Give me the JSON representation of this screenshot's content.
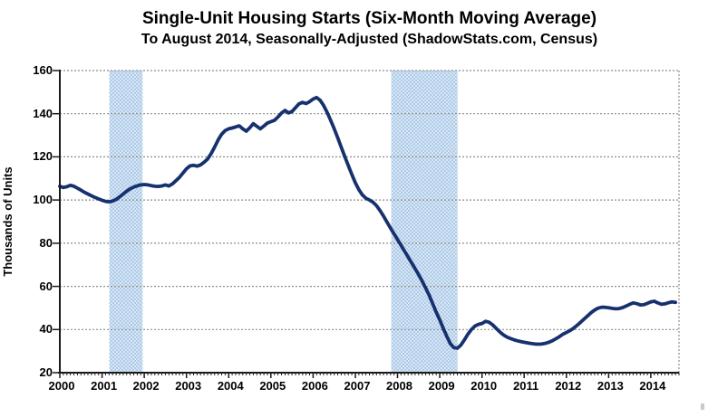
{
  "chart_data": {
    "type": "line",
    "title": "Single-Unit Housing Starts (Six-Month Moving Average)",
    "subtitle": "To August 2014, Seasonally-Adjusted (ShadowStats.com, Census)",
    "xlabel": "",
    "ylabel": "Thousands of Units",
    "ylim": [
      20,
      160
    ],
    "xlim": [
      2000,
      2014.667
    ],
    "y_ticks": [
      20,
      40,
      60,
      80,
      100,
      120,
      140,
      160
    ],
    "x_ticks": [
      2000,
      2001,
      2002,
      2003,
      2004,
      2005,
      2006,
      2007,
      2008,
      2009,
      2010,
      2011,
      2012,
      2013,
      2014
    ],
    "grid": "horizontal-dashed-gray",
    "legend_position": "none",
    "line_color": "#17316F",
    "band_color": "#AECBE9",
    "grid_color": "#8C8C8C",
    "axis_color": "#1a1a1a",
    "shaded_regions": [
      {
        "name": "recession-band-1",
        "x_start": 2001.17,
        "x_end": 2001.96
      },
      {
        "name": "recession-band-2",
        "x_start": 2007.85,
        "x_end": 2009.42
      }
    ],
    "series": [
      {
        "name": "single-unit-housing-starts-6mo-ma",
        "x_start": 2000.0,
        "x_step_months": 1,
        "x_end": 2014.583,
        "values": [
          106.4,
          105.8,
          106.2,
          106.8,
          106.4,
          105.5,
          104.6,
          103.6,
          102.8,
          102.0,
          101.2,
          100.5,
          99.9,
          99.4,
          99.2,
          99.5,
          100.3,
          101.5,
          102.8,
          104.1,
          105.2,
          106.0,
          106.6,
          107.0,
          107.2,
          107.0,
          106.7,
          106.4,
          106.3,
          106.5,
          107.0,
          106.5,
          107.5,
          109.0,
          110.5,
          112.5,
          114.5,
          115.8,
          116.1,
          115.7,
          116.3,
          117.5,
          119.0,
          121.5,
          124.5,
          127.8,
          130.5,
          132.2,
          133.0,
          133.4,
          133.9,
          134.4,
          133.0,
          131.9,
          133.5,
          135.4,
          134.2,
          133.0,
          134.3,
          135.7,
          136.3,
          136.9,
          138.5,
          140.3,
          141.5,
          140.4,
          141.0,
          142.8,
          144.6,
          145.3,
          144.7,
          145.6,
          146.8,
          147.5,
          146.2,
          143.8,
          140.6,
          136.9,
          133.0,
          128.8,
          124.5,
          120.2,
          116.0,
          111.9,
          108.0,
          104.8,
          102.4,
          100.8,
          100.0,
          99.0,
          97.4,
          95.2,
          92.6,
          89.8,
          87.0,
          84.3,
          81.7,
          79.0,
          76.3,
          73.6,
          70.9,
          68.2,
          65.4,
          62.4,
          59.2,
          55.8,
          52.0,
          48.0,
          44.5,
          40.5,
          36.8,
          33.5,
          31.6,
          31.3,
          32.8,
          35.2,
          37.8,
          40.0,
          41.6,
          42.4,
          42.8,
          43.8,
          43.4,
          42.2,
          40.6,
          39.0,
          37.6,
          36.6,
          35.9,
          35.3,
          34.8,
          34.4,
          34.1,
          33.8,
          33.5,
          33.3,
          33.2,
          33.3,
          33.6,
          34.1,
          34.8,
          35.7,
          36.7,
          37.8,
          38.6,
          39.5,
          40.6,
          41.9,
          43.3,
          44.8,
          46.3,
          47.8,
          49.0,
          49.9,
          50.3,
          50.3,
          50.1,
          49.8,
          49.6,
          49.7,
          50.2,
          50.9,
          51.7,
          52.3,
          52.0,
          51.4,
          51.5,
          52.1,
          52.8,
          53.1,
          52.3,
          51.7,
          51.9,
          52.4,
          52.8,
          52.6
        ]
      }
    ]
  }
}
